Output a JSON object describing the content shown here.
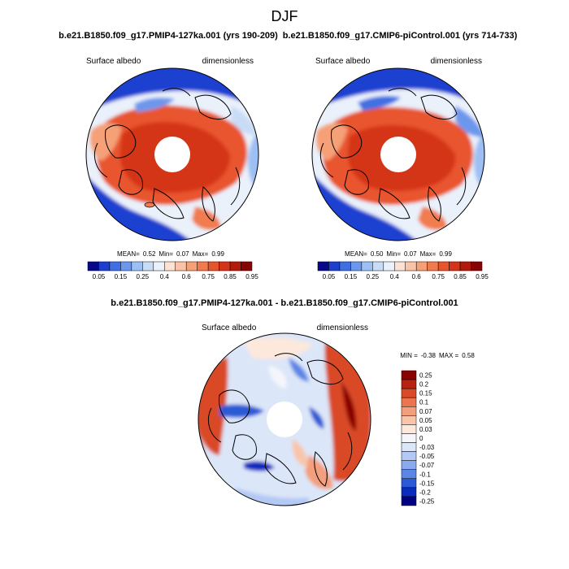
{
  "title": "DJF",
  "chart_data": [
    {
      "type": "heatmap",
      "projection": "north-polar-stereographic",
      "title": "b.e21.B1850.f09_g17.PMIP4-127ka.001 (yrs 190-209)",
      "left_label": "Surface albedo",
      "right_label": "dimensionless",
      "stats": {
        "mean_label": "MEAN=",
        "mean": "0.52",
        "min_label": "Min=",
        "min": "0.07",
        "max_label": "Max=",
        "max": "0.99"
      },
      "colorbar": {
        "orientation": "horizontal",
        "levels": [
          "0.05",
          "0.1",
          "0.15",
          "0.2",
          "0.25",
          "0.3",
          "0.4",
          "0.5",
          "0.6",
          "0.7",
          "0.75",
          "0.8",
          "0.85",
          "0.9",
          "0.95"
        ],
        "labels": [
          "0.05",
          "0.15",
          "0.25",
          "0.4",
          "0.6",
          "0.75",
          "0.85",
          "0.95"
        ]
      }
    },
    {
      "type": "heatmap",
      "projection": "north-polar-stereographic",
      "title": "b.e21.B1850.f09_g17.CMIP6-piControl.001 (yrs 714-733)",
      "left_label": "Surface albedo",
      "right_label": "dimensionless",
      "stats": {
        "mean_label": "MEAN=",
        "mean": "0.50",
        "min_label": "Min=",
        "min": "0.07",
        "max_label": "Max=",
        "max": "0.99"
      },
      "colorbar": {
        "orientation": "horizontal",
        "levels": [
          "0.05",
          "0.1",
          "0.15",
          "0.2",
          "0.25",
          "0.3",
          "0.4",
          "0.5",
          "0.6",
          "0.7",
          "0.75",
          "0.8",
          "0.85",
          "0.9",
          "0.95"
        ],
        "labels": [
          "0.05",
          "0.15",
          "0.25",
          "0.4",
          "0.6",
          "0.75",
          "0.85",
          "0.95"
        ]
      }
    },
    {
      "type": "heatmap",
      "projection": "north-polar-stereographic",
      "title": "b.e21.B1850.f09_g17.PMIP4-127ka.001 - b.e21.B1850.f09_g17.CMIP6-piControl.001",
      "left_label": "Surface albedo",
      "right_label": "dimensionless",
      "stats": {
        "min_label": "MIN =",
        "min": "-0.38",
        "max_label": "MAX =",
        "max": "0.58"
      },
      "colorbar": {
        "orientation": "vertical",
        "labels": [
          "0.25",
          "0.2",
          "0.15",
          "0.1",
          "0.07",
          "0.05",
          "0.03",
          "0",
          "-0.03",
          "-0.05",
          "-0.07",
          "-0.1",
          "-0.15",
          "-0.2",
          "-0.25"
        ]
      }
    }
  ],
  "palettes": {
    "sequential": [
      "#08088a",
      "#1c3fd0",
      "#3f6fe2",
      "#6d97ec",
      "#9dbff4",
      "#c9dcf6",
      "#eaf1fb",
      "#fbe2d4",
      "#f8c3a6",
      "#f5a077",
      "#f07b4f",
      "#e8552d",
      "#d43518",
      "#b31a0a",
      "#870404"
    ],
    "diverging": [
      "#000080",
      "#0a2bbf",
      "#2a5ad6",
      "#5b86e6",
      "#8aaaf0",
      "#b3c8f4",
      "#dbe6f8",
      "#f4f6fb",
      "#fde8dc",
      "#f8c5aa",
      "#f39f7d",
      "#ea7550",
      "#d94a28",
      "#b82210",
      "#8a0303"
    ]
  },
  "colors": {
    "land_outline": "#000000",
    "pole_hole": "#ffffff"
  }
}
